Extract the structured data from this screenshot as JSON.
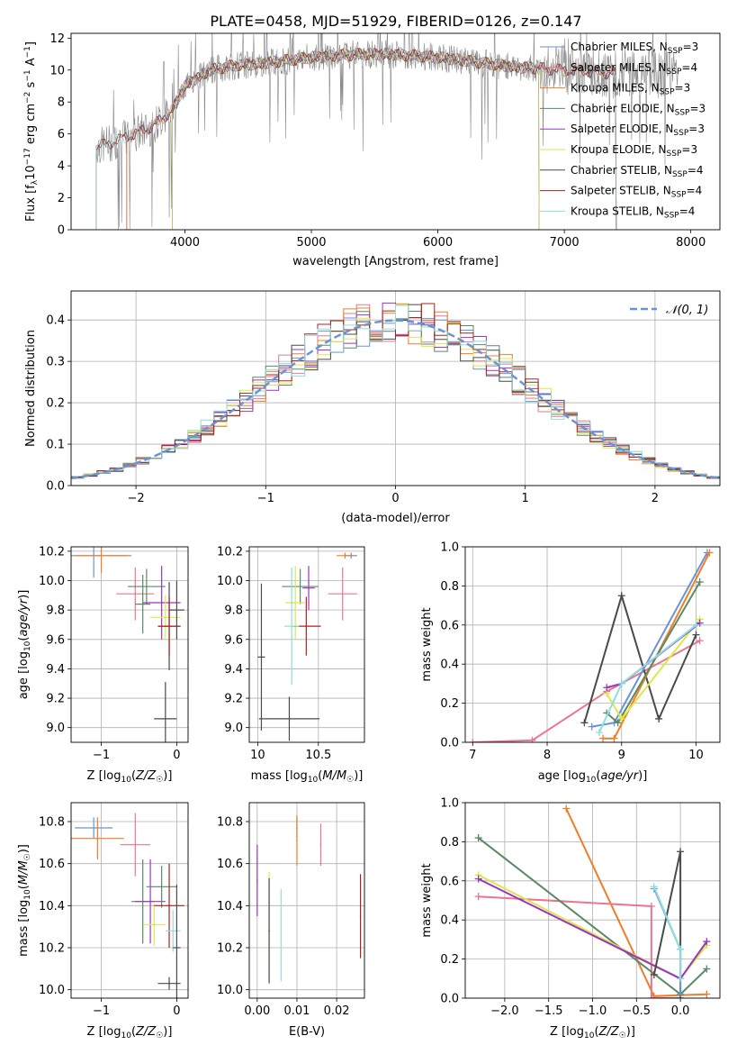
{
  "figure_title": "PLATE=0458, MJD=51929, FIBERID=0126, z=0.147",
  "colors": {
    "chabrier_miles": "#6a93d6",
    "salpeter_miles": "#e8768f",
    "kroupa_miles": "#f07d28",
    "chabrier_elodie": "#5a8a62",
    "salpeter_elodie": "#9c34c2",
    "kroupa_elodie": "#dce84a",
    "chabrier_stelib": "#4a4a4a",
    "salpeter_stelib": "#b0201a",
    "kroupa_stelib": "#8fdede",
    "data_gray": "#888888",
    "gaussian": "#6a93d6"
  },
  "chart_data": [
    {
      "id": "spectrum",
      "type": "line",
      "title": "PLATE=0458, MJD=51929, FIBERID=0126, z=0.147",
      "xlabel": "wavelength [Angstrom, rest frame]",
      "ylabel": "Flux [fλ10⁻¹⁷ erg cm⁻² s⁻¹ A⁻¹]",
      "xlim": [
        3100,
        8230
      ],
      "ylim": [
        0,
        12.3
      ],
      "xticks": [
        4000,
        5000,
        6000,
        7000,
        8000
      ],
      "yticks": [
        0,
        2,
        4,
        6,
        8,
        10,
        12
      ],
      "grid": false,
      "legend_position": "right",
      "legend": [
        {
          "label": "Chabrier MILES, N_SSP=3",
          "main": "Chabrier MILES, N",
          "sub": "SSP",
          "tail": "=3",
          "color_key": "chabrier_miles"
        },
        {
          "label": "Salpeter MILES, N_SSP=4",
          "main": "Salpeter MILES, N",
          "sub": "SSP",
          "tail": "=4",
          "color_key": "salpeter_miles"
        },
        {
          "label": "Kroupa MILES, N_SSP=3",
          "main": "Kroupa MILES, N",
          "sub": "SSP",
          "tail": "=3",
          "color_key": "kroupa_miles"
        },
        {
          "label": "Chabrier ELODIE, N_SSP=3",
          "main": "Chabrier ELODIE, N",
          "sub": "SSP",
          "tail": "=3",
          "color_key": "chabrier_elodie"
        },
        {
          "label": "Salpeter ELODIE, N_SSP=3",
          "main": "Salpeter ELODIE, N",
          "sub": "SSP",
          "tail": "=3",
          "color_key": "salpeter_elodie"
        },
        {
          "label": "Kroupa ELODIE, N_SSP=3",
          "main": "Kroupa ELODIE, N",
          "sub": "SSP",
          "tail": "=3",
          "color_key": "kroupa_elodie"
        },
        {
          "label": "Chabrier STELIB, N_SSP=4",
          "main": "Chabrier STELIB, N",
          "sub": "SSP",
          "tail": "=4",
          "color_key": "chabrier_stelib"
        },
        {
          "label": "Salpeter STELIB, N_SSP=4",
          "main": "Salpeter STELIB, N",
          "sub": "SSP",
          "tail": "=4",
          "color_key": "salpeter_stelib"
        },
        {
          "label": "Kroupa STELIB, N_SSP=4",
          "main": "Kroupa STELIB, N",
          "sub": "SSP",
          "tail": "=4",
          "color_key": "kroupa_stelib"
        }
      ],
      "model_continuum": {
        "x": [
          3300,
          3400,
          3500,
          3600,
          3700,
          3800,
          3900,
          4000,
          4200,
          4400,
          4600,
          4800,
          5000,
          5200,
          5400,
          5600,
          5800,
          6000,
          6200,
          6400,
          6600,
          6800,
          7000,
          7200,
          7400
        ],
        "y": [
          5.2,
          5.4,
          5.7,
          6.0,
          6.3,
          6.8,
          7.5,
          9.0,
          10.0,
          10.3,
          10.4,
          10.6,
          10.8,
          10.9,
          11.0,
          11.0,
          10.9,
          10.8,
          10.6,
          10.4,
          10.2,
          10.1,
          10.0,
          9.9,
          9.8
        ]
      },
      "model_wavelength_ranges": [
        {
          "color_key": "chabrier_miles",
          "x_range": [
            3540,
            7410
          ]
        },
        {
          "color_key": "salpeter_miles",
          "x_range": [
            3540,
            7410
          ]
        },
        {
          "color_key": "kroupa_miles",
          "x_range": [
            3540,
            7410
          ]
        },
        {
          "color_key": "chabrier_elodie",
          "x_range": [
            3900,
            6800
          ]
        },
        {
          "color_key": "salpeter_elodie",
          "x_range": [
            3900,
            6800
          ]
        },
        {
          "color_key": "kroupa_elodie",
          "x_range": [
            3900,
            6800
          ]
        },
        {
          "color_key": "chabrier_stelib",
          "x_range": [
            3300,
            7410
          ]
        },
        {
          "color_key": "salpeter_stelib",
          "x_range": [
            3300,
            7410
          ]
        },
        {
          "color_key": "kroupa_stelib",
          "x_range": [
            3300,
            7410
          ]
        }
      ],
      "data_x_range": [
        3300,
        7900
      ]
    },
    {
      "id": "residuals",
      "type": "histogram",
      "xlabel": "(data-model)/error",
      "ylabel": "Normed distribution",
      "xlim": [
        -2.5,
        2.5
      ],
      "ylim": [
        0,
        0.47
      ],
      "xticks": [
        -2,
        -1,
        0,
        1,
        2
      ],
      "yticks": [
        0.0,
        0.1,
        0.2,
        0.3,
        0.4
      ],
      "grid": true,
      "legend_position": "top-right",
      "gaussian_label": "𝒩(0, 1)",
      "bin_width": 0.1
    },
    {
      "id": "z_age",
      "type": "errorbar",
      "xlabel": "Z [log10(Z/Z☉)]",
      "ylabel": "age [log10(age/yr)]",
      "xlim": [
        -1.4,
        0.15
      ],
      "ylim": [
        8.9,
        10.23
      ],
      "xticks": [
        -1,
        0
      ],
      "yticks": [
        9.0,
        9.2,
        9.4,
        9.6,
        9.8,
        10.0,
        10.2
      ],
      "grid": true,
      "points": [
        {
          "color_key": "chabrier_miles",
          "x": -1.1,
          "xerr": 0.5,
          "y": 10.17,
          "yerr": 0.15
        },
        {
          "color_key": "kroupa_miles",
          "x": -1.0,
          "xerr": 0.35,
          "y": 10.17,
          "yerr": 0.12
        },
        {
          "color_key": "salpeter_miles",
          "x": -0.55,
          "xerr": 0.25,
          "y": 9.91,
          "yerr": 0.18
        },
        {
          "color_key": "chabrier_elodie",
          "x": -0.4,
          "xerr": 0.25,
          "y": 9.96,
          "yerr": 0.12
        },
        {
          "color_key": "salpeter_elodie",
          "x": -0.2,
          "xerr": 0.25,
          "y": 9.85,
          "yerr": 0.25
        },
        {
          "color_key": "chabrier_elodie",
          "x": -0.45,
          "xerr": 0.1,
          "y": 9.84,
          "yerr": 0.2
        },
        {
          "color_key": "kroupa_elodie",
          "x": -0.15,
          "xerr": 0.2,
          "y": 9.75,
          "yerr": 0.15
        },
        {
          "color_key": "chabrier_stelib",
          "x": -0.1,
          "xerr": 0.15,
          "y": 9.69,
          "yerr": 0.3
        },
        {
          "color_key": "salpeter_stelib",
          "x": -0.1,
          "xerr": 0.15,
          "y": 9.69,
          "yerr": 0.2
        },
        {
          "color_key": "chabrier_stelib",
          "x": -0.15,
          "xerr": 0.15,
          "y": 9.06,
          "yerr": 0.25
        },
        {
          "color_key": "chabrier_stelib",
          "x": 0.0,
          "xerr": 0.1,
          "y": 9.8,
          "yerr": 0.2
        }
      ]
    },
    {
      "id": "mass_age",
      "type": "errorbar",
      "xlabel": "mass [log10(M/M☉)]",
      "ylabel": "",
      "xlim": [
        9.93,
        10.88
      ],
      "ylim": [
        8.9,
        10.23
      ],
      "xticks": [
        10.0,
        10.5
      ],
      "yticks": [
        9.0,
        9.2,
        9.4,
        9.6,
        9.8,
        10.0,
        10.2
      ],
      "grid": true,
      "points": [
        {
          "color_key": "chabrier_miles",
          "x": 10.77,
          "xerr": 0.05,
          "y": 10.17,
          "yerr": 0.02
        },
        {
          "color_key": "kroupa_miles",
          "x": 10.72,
          "xerr": 0.07,
          "y": 10.17,
          "yerr": 0.02
        },
        {
          "color_key": "salpeter_miles",
          "x": 10.7,
          "xerr": 0.12,
          "y": 9.91,
          "yerr": 0.18
        },
        {
          "color_key": "salpeter_elodie",
          "x": 10.42,
          "xerr": 0.05,
          "y": 9.95,
          "yerr": 0.15
        },
        {
          "color_key": "chabrier_elodie",
          "x": 10.35,
          "xerr": 0.15,
          "y": 9.96,
          "yerr": 0.12
        },
        {
          "color_key": "kroupa_elodie",
          "x": 10.31,
          "xerr": 0.08,
          "y": 9.85,
          "yerr": 0.25
        },
        {
          "color_key": "salpeter_stelib",
          "x": 10.4,
          "xerr": 0.12,
          "y": 9.69,
          "yerr": 0.2
        },
        {
          "color_key": "kroupa_stelib",
          "x": 10.28,
          "xerr": 0.06,
          "y": 9.69,
          "yerr": 0.4
        },
        {
          "color_key": "chabrier_stelib",
          "x": 10.03,
          "xerr": 0.03,
          "y": 9.48,
          "yerr": 0.5
        },
        {
          "color_key": "chabrier_stelib",
          "x": 10.26,
          "xerr": 0.25,
          "y": 9.06,
          "yerr": 0.15
        }
      ]
    },
    {
      "id": "age_weight",
      "type": "line",
      "xlabel": "age [log10(age/yr)]",
      "ylabel": "mass weight",
      "xlim": [
        6.9,
        10.32
      ],
      "ylim": [
        0,
        1.0
      ],
      "xticks": [
        7,
        8,
        9,
        10
      ],
      "yticks": [
        0.0,
        0.2,
        0.4,
        0.6,
        0.8,
        1.0
      ],
      "grid": true,
      "series": [
        {
          "color_key": "salpeter_miles",
          "x": [
            7.0,
            7.8,
            8.8,
            10.05
          ],
          "y": [
            0.0,
            0.01,
            0.26,
            0.52
          ]
        },
        {
          "color_key": "chabrier_stelib",
          "x": [
            8.5,
            9.0,
            9.5,
            10.0
          ],
          "y": [
            0.1,
            0.75,
            0.12,
            0.55
          ]
        },
        {
          "color_key": "chabrier_miles",
          "x": [
            8.6,
            8.9,
            10.15
          ],
          "y": [
            0.08,
            0.1,
            0.97
          ]
        },
        {
          "color_key": "kroupa_miles",
          "x": [
            8.75,
            8.9,
            10.18
          ],
          "y": [
            0.02,
            0.02,
            0.97
          ]
        },
        {
          "color_key": "chabrier_elodie",
          "x": [
            8.8,
            8.95,
            10.05
          ],
          "y": [
            0.15,
            0.1,
            0.82
          ]
        },
        {
          "color_key": "kroupa_elodie",
          "x": [
            8.8,
            9.0,
            10.05
          ],
          "y": [
            0.25,
            0.12,
            0.63
          ]
        },
        {
          "color_key": "salpeter_elodie",
          "x": [
            8.8,
            9.0,
            10.05
          ],
          "y": [
            0.28,
            0.3,
            0.61
          ]
        },
        {
          "color_key": "kroupa_stelib",
          "x": [
            8.7,
            9.0,
            10.0
          ],
          "y": [
            0.05,
            0.3,
            0.6
          ]
        }
      ]
    },
    {
      "id": "z_mass",
      "type": "errorbar",
      "xlabel": "Z [log10(Z/Z☉)]",
      "ylabel": "mass [log10(M/M☉)]",
      "xlim": [
        -1.4,
        0.15
      ],
      "ylim": [
        9.96,
        10.89
      ],
      "xticks": [
        -1,
        0
      ],
      "yticks": [
        10.0,
        10.2,
        10.4,
        10.6,
        10.8
      ],
      "grid": true,
      "points": [
        {
          "color_key": "chabrier_miles",
          "x": -1.1,
          "xerr": 0.25,
          "y": 10.77,
          "yerr": 0.05
        },
        {
          "color_key": "kroupa_miles",
          "x": -1.05,
          "xerr": 0.35,
          "y": 10.72,
          "yerr": 0.1
        },
        {
          "color_key": "salpeter_miles",
          "x": -0.55,
          "xerr": 0.2,
          "y": 10.69,
          "yerr": 0.15
        },
        {
          "color_key": "chabrier_elodie",
          "x": -0.45,
          "xerr": 0.15,
          "y": 10.42,
          "yerr": 0.2
        },
        {
          "color_key": "salpeter_elodie",
          "x": -0.35,
          "xerr": 0.2,
          "y": 10.42,
          "yerr": 0.2
        },
        {
          "color_key": "chabrier_elodie",
          "x": -0.2,
          "xerr": 0.2,
          "y": 10.49,
          "yerr": 0.1
        },
        {
          "color_key": "kroupa_elodie",
          "x": -0.3,
          "xerr": 0.15,
          "y": 10.31,
          "yerr": 0.1
        },
        {
          "color_key": "salpeter_stelib",
          "x": -0.1,
          "xerr": 0.2,
          "y": 10.4,
          "yerr": 0.2
        },
        {
          "color_key": "kroupa_stelib",
          "x": -0.05,
          "xerr": 0.1,
          "y": 10.28,
          "yerr": 0.1
        },
        {
          "color_key": "chabrier_stelib",
          "x": -0.1,
          "xerr": 0.15,
          "y": 10.03,
          "yerr": 0.03
        },
        {
          "color_key": "chabrier_stelib",
          "x": 0.0,
          "xerr": 0.05,
          "y": 10.2,
          "yerr": 0.3
        }
      ]
    },
    {
      "id": "ebv_mass",
      "type": "errorbar",
      "xlabel": "E(B-V)",
      "ylabel": "",
      "xlim": [
        -0.002,
        0.027
      ],
      "ylim": [
        9.96,
        10.89
      ],
      "xticks": [
        0.0,
        0.01,
        0.02
      ],
      "xticklabels": [
        "0.00",
        "0.01",
        "0.02"
      ],
      "yticks": [
        10.0,
        10.2,
        10.4,
        10.6,
        10.8
      ],
      "grid": true,
      "points": [
        {
          "color_key": "salpeter_elodie",
          "x": 0.0,
          "xerr": 0.0,
          "y": 10.52,
          "yerr": 0.17
        },
        {
          "color_key": "kroupa_elodie",
          "x": 0.003,
          "xerr": 0.0,
          "y": 10.31,
          "yerr": 0.25
        },
        {
          "color_key": "chabrier_stelib",
          "x": 0.003,
          "xerr": 0.0,
          "y": 10.28,
          "yerr": 0.25
        },
        {
          "color_key": "kroupa_stelib",
          "x": 0.006,
          "xerr": 0.0,
          "y": 10.26,
          "yerr": 0.22
        },
        {
          "color_key": "chabrier_miles",
          "x": 0.01,
          "xerr": 0.0,
          "y": 10.77,
          "yerr": 0.05
        },
        {
          "color_key": "kroupa_miles",
          "x": 0.01,
          "xerr": 0.0,
          "y": 10.71,
          "yerr": 0.12
        },
        {
          "color_key": "salpeter_miles",
          "x": 0.016,
          "xerr": 0.0,
          "y": 10.69,
          "yerr": 0.1
        },
        {
          "color_key": "salpeter_stelib",
          "x": 0.026,
          "xerr": 0.0,
          "y": 10.35,
          "yerr": 0.2
        }
      ]
    },
    {
      "id": "z_weight",
      "type": "line",
      "xlabel": "Z [log10(Z/Z☉)]",
      "ylabel": "mass weight",
      "xlim": [
        -2.45,
        0.45
      ],
      "ylim": [
        0,
        1.0
      ],
      "xticks": [
        -2.0,
        -1.5,
        -1.0,
        -0.5,
        0.0
      ],
      "xticklabels": [
        "−2.0",
        "−1.5",
        "−1.0",
        "−0.5",
        "0.0"
      ],
      "yticks": [
        0.0,
        0.2,
        0.4,
        0.6,
        0.8,
        1.0
      ],
      "grid": true,
      "series": [
        {
          "color_key": "kroupa_miles",
          "x": [
            -1.3,
            -0.3,
            0.3
          ],
          "y": [
            0.97,
            0.01,
            0.02
          ]
        },
        {
          "color_key": "salpeter_miles",
          "x": [
            -2.3,
            -0.33,
            -0.33,
            0.0
          ],
          "y": [
            0.52,
            0.47,
            0.0,
            0.0
          ]
        },
        {
          "color_key": "chabrier_elodie",
          "x": [
            -2.3,
            0.0,
            0.3
          ],
          "y": [
            0.82,
            0.02,
            0.15
          ]
        },
        {
          "color_key": "kroupa_elodie",
          "x": [
            -2.3,
            0.0,
            0.3
          ],
          "y": [
            0.63,
            0.1,
            0.27
          ]
        },
        {
          "color_key": "salpeter_elodie",
          "x": [
            -2.3,
            0.0,
            0.3
          ],
          "y": [
            0.61,
            0.1,
            0.29
          ]
        },
        {
          "color_key": "chabrier_stelib",
          "x": [
            -0.3,
            0.0,
            0.0
          ],
          "y": [
            0.12,
            0.75,
            0.0
          ]
        },
        {
          "color_key": "chabrier_miles",
          "x": [
            -0.3,
            0.0,
            0.0
          ],
          "y": [
            0.56,
            0.25,
            0.02
          ]
        },
        {
          "color_key": "kroupa_stelib",
          "x": [
            -0.3,
            0.0,
            0.0
          ],
          "y": [
            0.57,
            0.25,
            0.1
          ]
        }
      ]
    }
  ]
}
